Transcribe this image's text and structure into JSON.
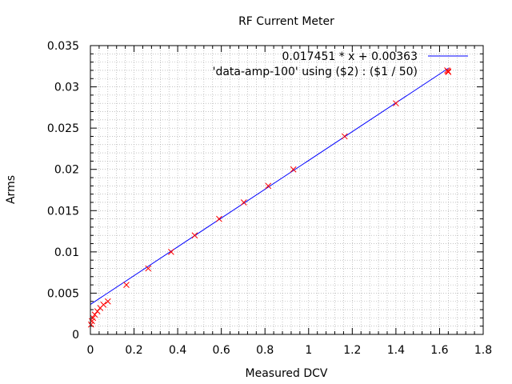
{
  "chart_data": {
    "type": "scatter",
    "title": "RF Current Meter",
    "xlabel": "Measured DCV",
    "ylabel": "Arms",
    "xlim": [
      0,
      1.8
    ],
    "ylim": [
      0,
      0.035
    ],
    "x_ticks": [
      "0",
      "0.2",
      "0.4",
      "0.6",
      "0.8",
      "1",
      "1.2",
      "1.4",
      "1.6",
      "1.8"
    ],
    "y_ticks": [
      "0",
      "0.005",
      "0.01",
      "0.015",
      "0.02",
      "0.025",
      "0.03",
      "0.035"
    ],
    "grid": true,
    "legend_position": "top-right",
    "series": [
      {
        "name": "0.017451 * x + 0.00363",
        "kind": "line",
        "color": "#0000ff",
        "slope": 0.017451,
        "intercept": 0.00363,
        "x_range": [
          0,
          1.64
        ]
      },
      {
        "name": "'data-amp-100' using ($2) : ($1 / 50)",
        "kind": "points",
        "color": "#ff0000",
        "marker": "x",
        "points": [
          [
            0.003,
            0.0012
          ],
          [
            0.007,
            0.0016
          ],
          [
            0.012,
            0.002
          ],
          [
            0.02,
            0.0024
          ],
          [
            0.032,
            0.0028
          ],
          [
            0.045,
            0.0032
          ],
          [
            0.06,
            0.0036
          ],
          [
            0.08,
            0.004
          ],
          [
            0.165,
            0.006
          ],
          [
            0.265,
            0.008
          ],
          [
            0.37,
            0.01
          ],
          [
            0.478,
            0.012
          ],
          [
            0.59,
            0.014
          ],
          [
            0.703,
            0.016
          ],
          [
            0.815,
            0.018
          ],
          [
            0.93,
            0.02
          ],
          [
            1.165,
            0.024
          ],
          [
            1.4,
            0.028
          ],
          [
            1.635,
            0.032
          ],
          [
            1.64,
            0.0318
          ]
        ]
      }
    ]
  }
}
